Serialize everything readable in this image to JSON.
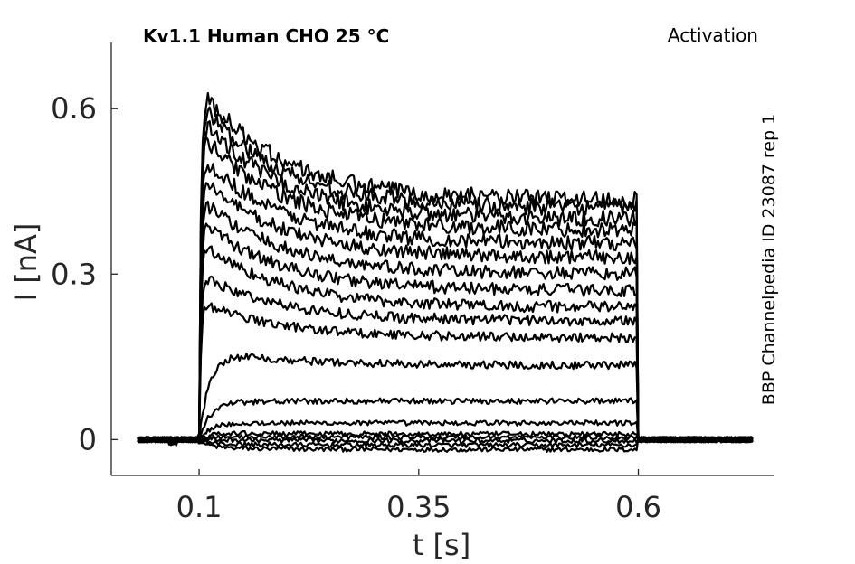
{
  "chart_data": {
    "type": "line",
    "title": "Kv1.1  Human  CHO  25 °C",
    "protocol": "Activation",
    "side_label": "BBP Channelpedia ID 23087 rep 1",
    "xlabel": "t [s]",
    "ylabel": "I [nA]",
    "xlim": [
      0.0,
      0.755
    ],
    "ylim": [
      -0.065,
      0.72
    ],
    "x_ticks": [
      0.1,
      0.35,
      0.6
    ],
    "x_tick_labels": [
      "0.1",
      "0.35",
      "0.6"
    ],
    "y_ticks": [
      0,
      0.3,
      0.6
    ],
    "y_tick_labels": [
      "0",
      "0.3",
      "0.6"
    ],
    "grid": false,
    "legend": "none",
    "color": "#000000",
    "pulse_window": [
      0.1,
      0.6
    ],
    "baseline_window": [
      0.03,
      0.73
    ],
    "series_summary": [
      {
        "peak": -0.015,
        "end": -0.018
      },
      {
        "peak": -0.008,
        "end": -0.01
      },
      {
        "peak": 0.0,
        "end": -0.002
      },
      {
        "peak": 0.006,
        "end": 0.004
      },
      {
        "peak": 0.012,
        "end": 0.01
      },
      {
        "peak": 0.03,
        "end": 0.03
      },
      {
        "peak": 0.068,
        "end": 0.07
      },
      {
        "peak": 0.165,
        "end": 0.135
      },
      {
        "peak": 0.25,
        "end": 0.185
      },
      {
        "peak": 0.3,
        "end": 0.215
      },
      {
        "peak": 0.36,
        "end": 0.24
      },
      {
        "peak": 0.4,
        "end": 0.27
      },
      {
        "peak": 0.44,
        "end": 0.3
      },
      {
        "peak": 0.48,
        "end": 0.33
      },
      {
        "peak": 0.52,
        "end": 0.355
      },
      {
        "peak": 0.56,
        "end": 0.38
      },
      {
        "peak": 0.59,
        "end": 0.4
      },
      {
        "peak": 0.615,
        "end": 0.42
      },
      {
        "peak": 0.64,
        "end": 0.435
      }
    ]
  }
}
